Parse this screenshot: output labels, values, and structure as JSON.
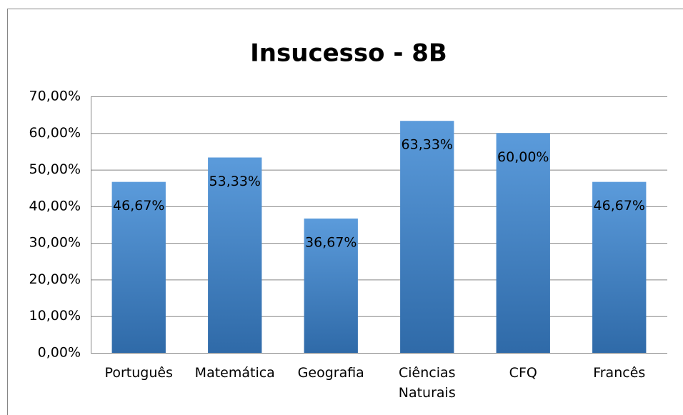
{
  "chart_data": {
    "type": "bar",
    "title": "Insucesso - 8B",
    "categories": [
      "Português",
      "Matemática",
      "Geografia",
      "Ciências Naturais",
      "CFQ",
      "Francês"
    ],
    "values": [
      46.67,
      53.33,
      36.67,
      63.33,
      60.0,
      46.67
    ],
    "value_labels": [
      "46,67%",
      "53,33%",
      "36,67%",
      "63,33%",
      "60,00%",
      "46,67%"
    ],
    "color": "#4a86c8",
    "ylim": [
      0,
      70
    ],
    "yticks": [
      {
        "value": 0,
        "label": "0,00%"
      },
      {
        "value": 10,
        "label": "10,00%"
      },
      {
        "value": 20,
        "label": "20,00%"
      },
      {
        "value": 30,
        "label": "30,00%"
      },
      {
        "value": 40,
        "label": "40,00%"
      },
      {
        "value": 50,
        "label": "50,00%"
      },
      {
        "value": 60,
        "label": "60,00%"
      },
      {
        "value": 70,
        "label": "70,00%"
      }
    ],
    "grid": true
  }
}
